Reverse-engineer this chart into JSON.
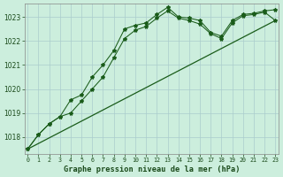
{
  "title": "Graphe pression niveau de la mer (hPa)",
  "background_color": "#cceedd",
  "grid_color": "#aacccc",
  "line_color": "#1a5c1a",
  "hours": [
    0,
    1,
    2,
    3,
    4,
    5,
    6,
    7,
    8,
    9,
    10,
    11,
    12,
    13,
    14,
    15,
    16,
    17,
    18,
    19,
    20,
    21,
    22,
    23
  ],
  "series1": [
    1017.5,
    1018.1,
    1018.55,
    1018.85,
    1019.55,
    1019.75,
    1020.5,
    1021.0,
    1021.6,
    1022.5,
    1022.65,
    1022.75,
    1023.1,
    1023.4,
    1023.0,
    1022.95,
    1022.85,
    1022.35,
    1022.2,
    1022.85,
    1023.1,
    1023.15,
    1023.25,
    1023.3
  ],
  "series2": [
    1017.5,
    1018.1,
    1018.55,
    1018.85,
    1019.0,
    1019.5,
    1020.0,
    1020.5,
    1021.3,
    1022.1,
    1022.45,
    1022.6,
    1022.95,
    1023.25,
    1022.95,
    1022.85,
    1022.7,
    1022.3,
    1022.1,
    1022.75,
    1023.05,
    1023.1,
    1023.2,
    1022.85
  ],
  "straight_line": [
    [
      0,
      23
    ],
    [
      1017.5,
      1022.85
    ]
  ],
  "yticks": [
    1018,
    1019,
    1020,
    1021,
    1022,
    1023
  ],
  "ylim_min": 1017.3,
  "ylim_max": 1023.55,
  "xlim_min": -0.3,
  "xlim_max": 23.3
}
